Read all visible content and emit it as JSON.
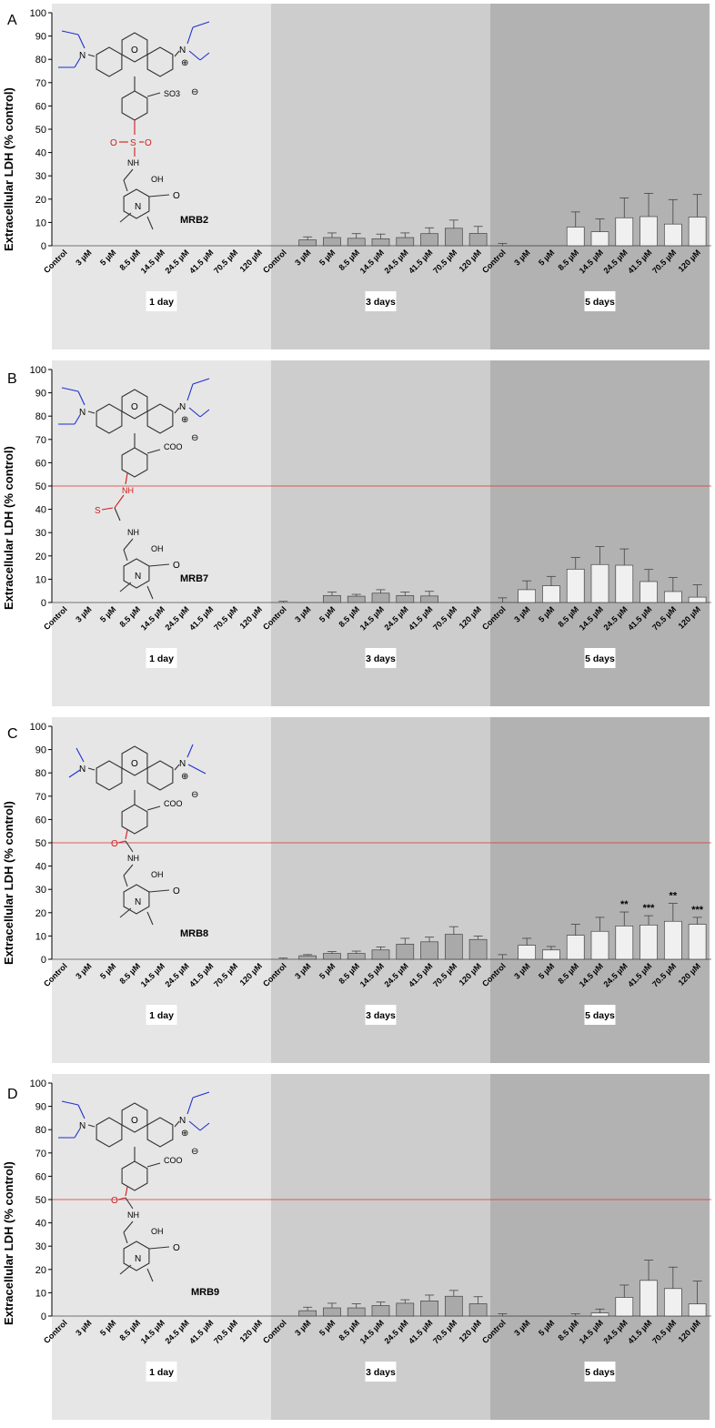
{
  "colors": {
    "day1_bg": "#e6e6e6",
    "day3_bg": "#cdcdcd",
    "day5_bg": "#b2b2b2",
    "bar_day3": "#a9a9a9",
    "bar_day5": "#f0f0f0",
    "ref_line": "#e03030",
    "struct_blue": "#1f2fd0",
    "struct_red": "#d41a1a"
  },
  "chart_data": [
    {
      "type": "bar",
      "panel": "A",
      "compound": "MRB2",
      "ylabel": "Extracellular LDH  (% control)",
      "ylim": [
        0,
        100
      ],
      "yticks": [
        "0",
        "10",
        "20",
        "30",
        "40",
        "50",
        "60",
        "70",
        "80",
        "90",
        "100"
      ],
      "groups": [
        "1 day",
        "3 days",
        "5 days"
      ],
      "categories": [
        "Control",
        "3 µM",
        "5 µM",
        "8.5 µM",
        "14.5 µM",
        "24.5 µM",
        "41.5 µM",
        "70.5 µM",
        "120 µM"
      ],
      "ref_line": null,
      "series": [
        {
          "values": [
            0,
            0,
            0,
            0,
            0,
            0,
            0,
            0,
            0
          ],
          "errors": [
            0,
            0,
            0,
            0,
            0,
            0,
            0,
            0,
            0
          ],
          "stars": [
            "",
            "",
            "",
            "",
            "",
            "",
            "",
            "",
            ""
          ]
        },
        {
          "values": [
            0,
            2.5,
            3.5,
            3.2,
            3,
            3.5,
            5.2,
            7.5,
            5.3
          ],
          "errors": [
            0,
            1.3,
            2,
            2,
            2,
            2,
            2.5,
            3.5,
            3
          ],
          "stars": [
            "",
            "",
            "",
            "",
            "",
            "",
            "",
            "",
            ""
          ]
        },
        {
          "values": [
            0,
            0,
            0,
            8,
            6,
            12,
            12.5,
            9.3,
            12.3
          ],
          "errors": [
            1,
            0,
            0,
            6.5,
            5.5,
            8.5,
            10,
            10.5,
            9.7
          ],
          "stars": [
            "",
            "",
            "",
            "",
            "",
            "",
            "",
            "",
            ""
          ]
        }
      ]
    },
    {
      "type": "bar",
      "panel": "B",
      "compound": "MRB7",
      "ylabel": "Extracellular LDH  (% control)",
      "ylim": [
        0,
        100
      ],
      "yticks": [
        "0",
        "10",
        "20",
        "30",
        "40",
        "50",
        "60",
        "70",
        "80",
        "90",
        "100"
      ],
      "groups": [
        "1 day",
        "3 days",
        "5 days"
      ],
      "categories": [
        "Control",
        "3 µM",
        "5 µM",
        "8.5 µM",
        "14.5 µM",
        "24.5 µM",
        "41.5 µM",
        "70.5 µM",
        "120 µM"
      ],
      "ref_line": 50,
      "series": [
        {
          "values": [
            0,
            0,
            0,
            0,
            0,
            0,
            0,
            0,
            0
          ],
          "errors": [
            0,
            0,
            0,
            0,
            0,
            0,
            0,
            0,
            0
          ],
          "stars": [
            "",
            "",
            "",
            "",
            "",
            "",
            "",
            "",
            ""
          ]
        },
        {
          "values": [
            0,
            0,
            3,
            2.7,
            4,
            3,
            2.8,
            0,
            0
          ],
          "errors": [
            0.5,
            0,
            1.5,
            0.8,
            1.5,
            1.5,
            2,
            0,
            0
          ],
          "stars": [
            "",
            "",
            "",
            "",
            "",
            "",
            "",
            "",
            ""
          ]
        },
        {
          "values": [
            0,
            5.5,
            7.2,
            14.3,
            16.3,
            16,
            9,
            4.7,
            2.3
          ],
          "errors": [
            2,
            3.8,
            4,
            5,
            7.7,
            7,
            5.2,
            6,
            5.3
          ],
          "stars": [
            "",
            "",
            "",
            "",
            "",
            "",
            "",
            "",
            ""
          ]
        }
      ]
    },
    {
      "type": "bar",
      "panel": "C",
      "compound": "MRB8",
      "ylabel": "Extracellular LDH  (% control)",
      "ylim": [
        0,
        100
      ],
      "yticks": [
        "0",
        "10",
        "20",
        "30",
        "40",
        "50",
        "60",
        "70",
        "80",
        "90",
        "100"
      ],
      "groups": [
        "1 day",
        "3 days",
        "5 days"
      ],
      "categories": [
        "Control",
        "3 µM",
        "5 µM",
        "8.5 µM",
        "14.5 µM",
        "24.5 µM",
        "41.5 µM",
        "70.5 µM",
        "120 µM"
      ],
      "ref_line": 50,
      "series": [
        {
          "values": [
            0,
            0,
            0,
            0,
            0,
            0,
            0,
            0,
            0
          ],
          "errors": [
            0,
            0,
            0,
            0,
            0,
            0,
            0,
            0,
            0
          ],
          "stars": [
            "",
            "",
            "",
            "",
            "",
            "",
            "",
            "",
            ""
          ]
        },
        {
          "values": [
            0,
            1.5,
            2.5,
            2.5,
            4,
            6.5,
            7.5,
            10.7,
            8.5
          ],
          "errors": [
            0.5,
            0.5,
            0.8,
            1,
            1.3,
            2.5,
            2,
            3.3,
            1.5
          ],
          "stars": [
            "",
            "",
            "",
            "",
            "",
            "",
            "",
            "",
            ""
          ]
        },
        {
          "values": [
            0,
            6,
            4,
            10.3,
            12,
            14.3,
            14.7,
            16.3,
            15
          ],
          "errors": [
            2,
            3,
            1.5,
            4.7,
            6,
            6,
            4,
            7.7,
            3
          ],
          "stars": [
            "",
            "",
            "",
            "",
            "",
            "**",
            "***",
            "**",
            "***"
          ]
        }
      ]
    },
    {
      "type": "bar",
      "panel": "D",
      "compound": "MRB9",
      "ylabel": "Extracellular LDH  (% control)",
      "ylim": [
        0,
        100
      ],
      "yticks": [
        "0",
        "10",
        "20",
        "30",
        "40",
        "50",
        "60",
        "70",
        "80",
        "90",
        "100"
      ],
      "groups": [
        "1 day",
        "3 days",
        "5 days"
      ],
      "categories": [
        "Control",
        "3 µM",
        "5 µM",
        "8.5 µM",
        "14.5 µM",
        "24.5 µM",
        "41.5 µM",
        "70.5 µM",
        "120 µM"
      ],
      "ref_line": 50,
      "series": [
        {
          "values": [
            0,
            0,
            0,
            0,
            0,
            0,
            0,
            0,
            0
          ],
          "errors": [
            0,
            0,
            0,
            0,
            0,
            0,
            0,
            0,
            0
          ],
          "stars": [
            "",
            "",
            "",
            "",
            "",
            "",
            "",
            "",
            ""
          ]
        },
        {
          "values": [
            0,
            2.3,
            3.5,
            3.5,
            4.5,
            5.5,
            6.5,
            8.5,
            5.3
          ],
          "errors": [
            0,
            1.5,
            2,
            1.8,
            1.5,
            1.5,
            2.5,
            2.5,
            3
          ],
          "stars": [
            "",
            "",
            "",
            "",
            "",
            "",
            "",
            "",
            ""
          ]
        },
        {
          "values": [
            0,
            0,
            0,
            0,
            1.3,
            8,
            15.3,
            11.8,
            5.2
          ],
          "errors": [
            1,
            0,
            0,
            1,
            1.7,
            5.3,
            8.7,
            9.2,
            9.8
          ],
          "stars": [
            "",
            "",
            "",
            "",
            "",
            "",
            "",
            "",
            ""
          ]
        }
      ]
    }
  ],
  "structures": [
    {
      "side_group": "SO3",
      "side_charge": "⊖",
      "iminium_charge": "⊕",
      "linker": [
        "O",
        "S",
        "O"
      ],
      "amine_label": "NH",
      "oh": "OH",
      "ketone": "O",
      "ring_n": "N",
      "n_left": "N",
      "n_right": "N",
      "xanthene_o": "O"
    },
    {
      "side_group": "COO",
      "side_charge": "⊖",
      "iminium_charge": "⊕",
      "linker": [
        "S"
      ],
      "amine_label": "NH",
      "nh_top": "NH",
      "oh": "OH",
      "ketone": "O",
      "ring_n": "N",
      "n_left": "N",
      "n_right": "N",
      "xanthene_o": "O"
    },
    {
      "side_group": "COO",
      "side_charge": "⊖",
      "iminium_charge": "⊕",
      "linker": [
        "O"
      ],
      "amine_label": "NH",
      "oh": "OH",
      "ketone": "O",
      "ring_n": "N",
      "n_left": "N",
      "n_right": "N",
      "xanthene_o": "O"
    },
    {
      "side_group": "COO",
      "side_charge": "⊖",
      "iminium_charge": "⊕",
      "linker": [
        "O"
      ],
      "amine_label": "NH",
      "oh": "OH",
      "ketone": "O",
      "ring_n": "N",
      "n_left": "N",
      "n_right": "N",
      "xanthene_o": "O"
    }
  ]
}
